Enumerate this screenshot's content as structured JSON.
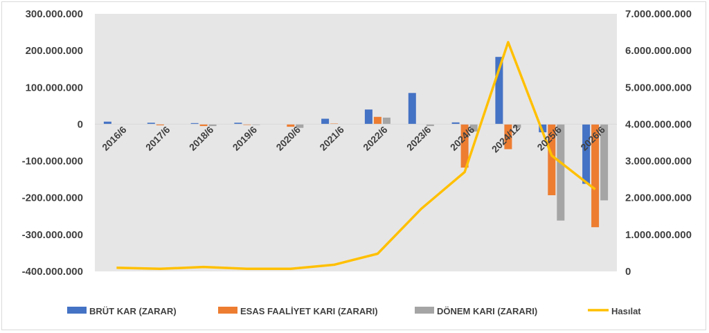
{
  "chart_data": {
    "type": "bar",
    "categories": [
      "2016/6",
      "2017/6",
      "2018/6",
      "2019/6",
      "2020/6",
      "2021/6",
      "2022/6",
      "2023/6",
      "2024/6",
      "2024/12",
      "2025/6",
      "2026/6"
    ],
    "series": [
      {
        "name": "BRÜT KAR (ZARAR)",
        "axis": "left",
        "kind": "bar",
        "color": "#4472C4",
        "values": [
          7000000,
          4000000,
          3000000,
          4000000,
          0,
          15000000,
          40000000,
          85000000,
          5000000,
          183000000,
          -22000000,
          -162000000
        ]
      },
      {
        "name": "ESAS FAALİYET KARI (ZARARI)",
        "axis": "left",
        "kind": "bar",
        "color": "#ED7D31",
        "values": [
          0,
          -3000000,
          -5000000,
          -2000000,
          -7000000,
          2000000,
          20000000,
          0,
          -118000000,
          -68000000,
          -193000000,
          -280000000
        ]
      },
      {
        "name": "DÖNEM KARI (ZARARI)",
        "axis": "left",
        "kind": "bar",
        "color": "#A5A5A5",
        "values": [
          0,
          0,
          -5000000,
          -2000000,
          -10000000,
          0,
          18000000,
          -5000000,
          -20000000,
          -10000000,
          -262000000,
          -207000000
        ]
      },
      {
        "name": "Hasılat",
        "axis": "right",
        "kind": "line",
        "color": "#FFC000",
        "values": [
          100000000,
          70000000,
          120000000,
          70000000,
          70000000,
          180000000,
          480000000,
          1700000000,
          2700000000,
          6230000000,
          3150000000,
          2230000000
        ]
      }
    ],
    "ylim": [
      -400000000,
      300000000
    ],
    "yticks": [
      "300.000.000",
      "200.000.000",
      "100.000.000",
      "0",
      "-100.000.000",
      "-200.000.000",
      "-300.000.000",
      "-400.000.000"
    ],
    "y2lim": [
      0,
      7000000000
    ],
    "y2ticks": [
      "7.000.000.000",
      "6.000.000.000",
      "5.000.000.000",
      "4.000.000.000",
      "3.000.000.000",
      "2.000.000.000",
      "1.000.000.000",
      "0"
    ],
    "legend_position": "bottom",
    "grid": false,
    "plot_background": "#E7E6E6"
  }
}
